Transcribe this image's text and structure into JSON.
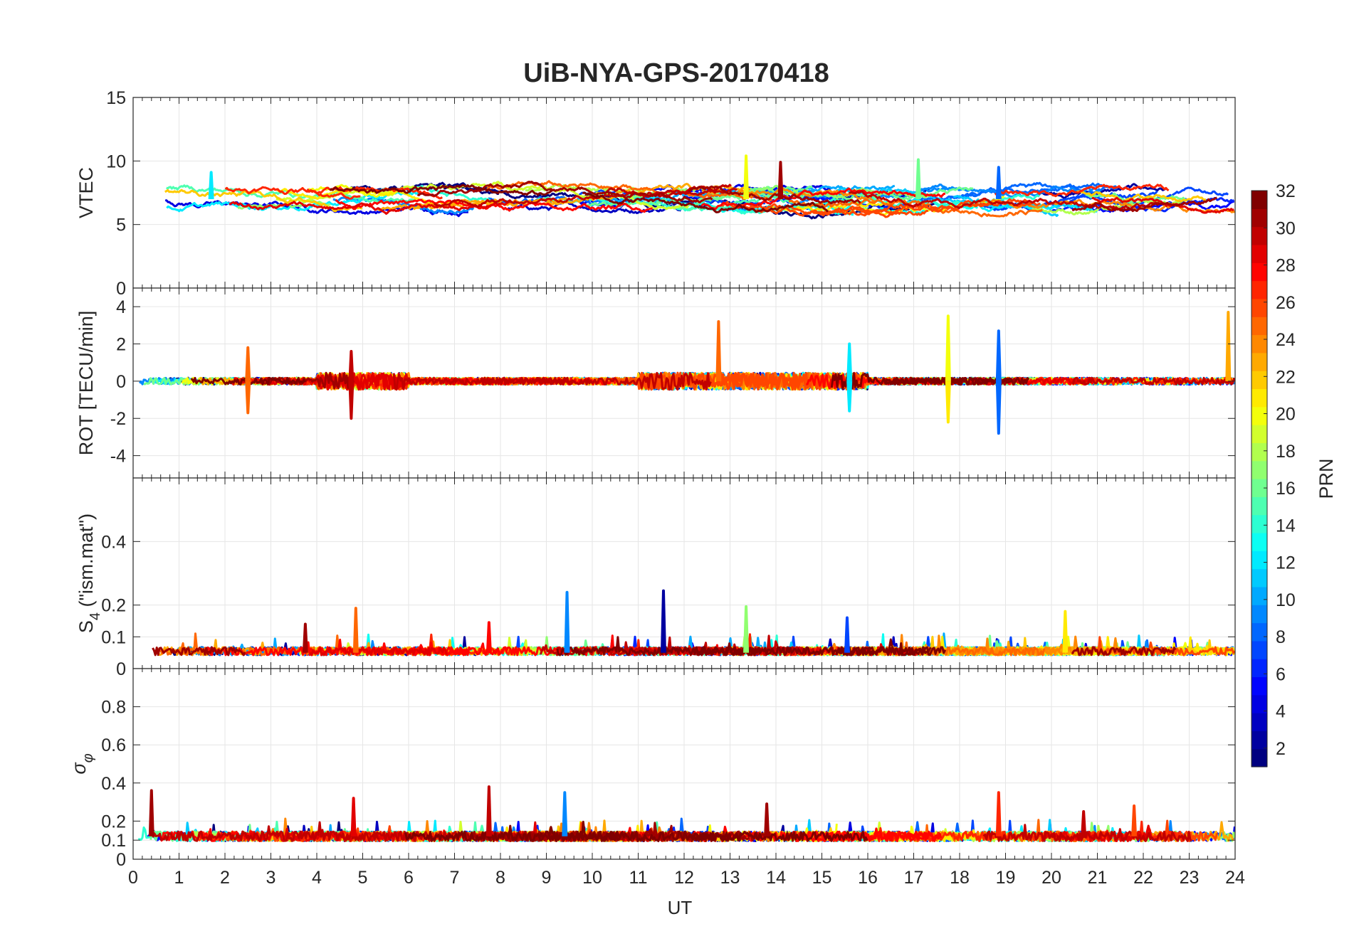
{
  "title": "UiB-NYA-GPS-20170418",
  "chart_data": [
    {
      "type": "line",
      "panel": "vtec",
      "ylabel": "VTEC",
      "ylim": [
        0,
        15
      ],
      "yticks": [
        0,
        5,
        10,
        15
      ],
      "grid": true,
      "series_count": 32,
      "baseline": 7,
      "spikes": [
        {
          "x": 18.85,
          "y": 9.5,
          "prn": 8
        },
        {
          "x": 13.35,
          "y": 10.4,
          "prn": 20
        },
        {
          "x": 17.1,
          "y": 10.1,
          "prn": 16
        },
        {
          "x": 14.1,
          "y": 9.9,
          "prn": 31
        },
        {
          "x": 1.7,
          "y": 9.1,
          "prn": 12
        }
      ]
    },
    {
      "type": "line",
      "panel": "rot",
      "ylabel": "ROT [TECU/min]",
      "ylim": [
        -5.2,
        5
      ],
      "yticks": [
        -4,
        -2,
        0,
        2,
        4
      ],
      "grid": true,
      "series_count": 32,
      "baseline": 0,
      "spikes": [
        {
          "x": 23.85,
          "y": 3.7,
          "prn": 23
        },
        {
          "x": 17.75,
          "y": 3.5,
          "prn": 20
        },
        {
          "x": 17.75,
          "y": -2.2,
          "prn": 21
        },
        {
          "x": 18.85,
          "y": 2.7,
          "prn": 8
        },
        {
          "x": 18.85,
          "y": -2.8,
          "prn": 8
        },
        {
          "x": 12.75,
          "y": 3.2,
          "prn": 25
        },
        {
          "x": 4.75,
          "y": 1.6,
          "prn": 30
        },
        {
          "x": 4.75,
          "y": -2.0,
          "prn": 30
        },
        {
          "x": 2.5,
          "y": 1.8,
          "prn": 25
        },
        {
          "x": 2.5,
          "y": -1.7,
          "prn": 25
        },
        {
          "x": 15.6,
          "y": 2.0,
          "prn": 12
        },
        {
          "x": 15.6,
          "y": -1.6,
          "prn": 12
        }
      ]
    },
    {
      "type": "line",
      "panel": "s4",
      "ylabel": "S",
      "ylabel_sub": "4",
      "ylabel_suffix": " (\"ism.mat\")",
      "ylim": [
        0,
        0.6
      ],
      "yticks": [
        0,
        0.1,
        0.2,
        0.4
      ],
      "grid": true,
      "series_count": 32,
      "baseline": 0.05,
      "spikes": [
        {
          "x": 9.45,
          "y": 0.24,
          "prn": 9
        },
        {
          "x": 11.55,
          "y": 0.245,
          "prn": 2
        },
        {
          "x": 13.35,
          "y": 0.195,
          "prn": 17
        },
        {
          "x": 4.85,
          "y": 0.19,
          "prn": 25
        },
        {
          "x": 20.3,
          "y": 0.18,
          "prn": 21
        },
        {
          "x": 7.75,
          "y": 0.145,
          "prn": 28
        },
        {
          "x": 3.75,
          "y": 0.14,
          "prn": 31
        },
        {
          "x": 15.55,
          "y": 0.16,
          "prn": 7
        }
      ]
    },
    {
      "type": "line",
      "panel": "sigma_phi",
      "ylabel": "σ",
      "ylabel_sub": "φ",
      "ylim": [
        0,
        1
      ],
      "yticks": [
        0,
        0.1,
        0.2,
        0.4,
        0.6,
        0.8
      ],
      "grid": true,
      "series_count": 32,
      "baseline": 0.12,
      "spikes": [
        {
          "x": 0.4,
          "y": 0.36,
          "prn": 31
        },
        {
          "x": 4.8,
          "y": 0.32,
          "prn": 29
        },
        {
          "x": 7.75,
          "y": 0.38,
          "prn": 30
        },
        {
          "x": 9.4,
          "y": 0.35,
          "prn": 9
        },
        {
          "x": 18.85,
          "y": 0.35,
          "prn": 27
        },
        {
          "x": 21.8,
          "y": 0.28,
          "prn": 26
        },
        {
          "x": 13.8,
          "y": 0.29,
          "prn": 31
        },
        {
          "x": 20.7,
          "y": 0.25,
          "prn": 30
        }
      ]
    }
  ],
  "x_axis": {
    "label": "UT",
    "range": [
      0,
      24
    ],
    "ticks": [
      "0",
      "1",
      "2",
      "3",
      "4",
      "5",
      "6",
      "7",
      "8",
      "9",
      "10",
      "11",
      "12",
      "13",
      "14",
      "15",
      "16",
      "17",
      "18",
      "19",
      "20",
      "21",
      "22",
      "23",
      "24"
    ]
  },
  "colorbar": {
    "label": "PRN",
    "range": [
      1,
      32
    ],
    "colormap": "jet",
    "ticks": [
      "2",
      "4",
      "6",
      "8",
      "10",
      "12",
      "14",
      "16",
      "18",
      "20",
      "22",
      "24",
      "26",
      "28",
      "30",
      "32"
    ]
  },
  "colors": {
    "axis": "#262626",
    "grid": "#e6e6e6",
    "background": "#ffffff"
  }
}
